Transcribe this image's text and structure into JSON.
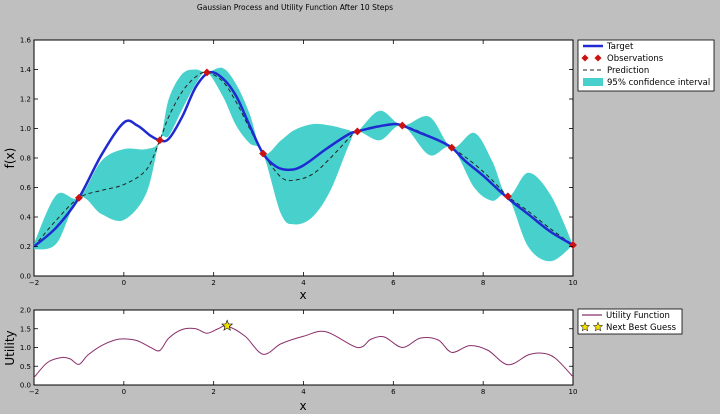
{
  "figure_title": "Gaussian Process and Utility Function After 10 Steps",
  "chart_data": [
    {
      "type": "line",
      "xlabel": "x",
      "ylabel": "f(x)",
      "xlim": [
        -2,
        10
      ],
      "ylim": [
        0,
        1.6
      ],
      "xticks": [
        "−2",
        "0",
        "2",
        "4",
        "6",
        "8",
        "10"
      ],
      "yticks": [
        "0.0",
        "0.2",
        "0.4",
        "0.6",
        "0.8",
        "1.0",
        "1.2",
        "1.4",
        "1.6"
      ],
      "grid": false,
      "legend_position": "right-outside-top",
      "legend": {
        "target": "Target",
        "observations": "Observations",
        "prediction": "Prediction",
        "ci": "95% confidence interval"
      },
      "colors": {
        "target": "#1f2ad1",
        "observations": "#cc1111",
        "prediction": "#222222",
        "ci": "#48d1cc"
      },
      "target": {
        "x": [
          -2,
          -1.5,
          -1,
          -0.5,
          0,
          0.3,
          0.6,
          0.8,
          1,
          1.3,
          1.6,
          1.9,
          2.2,
          2.5,
          2.8,
          3.1,
          3.4,
          3.7,
          4,
          4.5,
          5,
          5.2,
          5.6,
          6,
          6.2,
          6.6,
          7,
          7.3,
          7.6,
          8,
          8.5,
          9,
          9.5,
          10
        ],
        "y": [
          0.2,
          0.33,
          0.53,
          0.82,
          1.04,
          1.02,
          0.95,
          0.92,
          0.93,
          1.08,
          1.28,
          1.38,
          1.34,
          1.22,
          1.02,
          0.83,
          0.74,
          0.72,
          0.75,
          0.86,
          0.96,
          0.98,
          1.01,
          1.03,
          1.02,
          0.97,
          0.92,
          0.87,
          0.78,
          0.68,
          0.54,
          0.42,
          0.3,
          0.21
        ]
      },
      "observations": {
        "x": [
          -1,
          0.8,
          1.85,
          3.1,
          5.2,
          6.2,
          7.3,
          8.55,
          10
        ],
        "y": [
          0.53,
          0.92,
          1.38,
          0.83,
          0.98,
          1.02,
          0.87,
          0.54,
          0.21
        ]
      },
      "prediction": {
        "x": [
          -2,
          -1.5,
          -1,
          -0.5,
          0,
          0.5,
          0.8,
          1,
          1.3,
          1.6,
          1.85,
          2.2,
          2.5,
          2.8,
          3.1,
          3.5,
          3.8,
          4.2,
          4.6,
          5,
          5.2,
          5.7,
          6.2,
          6.8,
          7.3,
          7.8,
          8.2,
          8.55,
          9,
          9.5,
          10
        ],
        "y": [
          0.2,
          0.38,
          0.53,
          0.58,
          0.62,
          0.72,
          0.92,
          1.08,
          1.25,
          1.35,
          1.38,
          1.32,
          1.18,
          1.0,
          0.83,
          0.67,
          0.65,
          0.69,
          0.8,
          0.93,
          0.98,
          1.02,
          1.02,
          0.95,
          0.87,
          0.76,
          0.65,
          0.54,
          0.44,
          0.32,
          0.21
        ]
      },
      "ci": {
        "x": [
          -2,
          -1.5,
          -1,
          -0.5,
          0,
          0.5,
          0.8,
          1,
          1.3,
          1.6,
          1.85,
          2.2,
          2.5,
          2.8,
          3.1,
          3.5,
          3.8,
          4.2,
          4.6,
          5,
          5.2,
          5.7,
          6.2,
          6.8,
          7.3,
          7.8,
          8.2,
          8.55,
          9,
          9.5,
          10
        ],
        "upper": [
          0.22,
          0.55,
          0.53,
          0.78,
          0.86,
          0.86,
          0.92,
          1.2,
          1.37,
          1.4,
          1.38,
          1.41,
          1.3,
          1.1,
          0.83,
          0.92,
          0.99,
          1.03,
          1.02,
          0.99,
          0.98,
          1.12,
          1.02,
          1.08,
          0.87,
          0.97,
          0.78,
          0.54,
          0.7,
          0.55,
          0.21
        ],
        "lower": [
          0.18,
          0.22,
          0.53,
          0.42,
          0.38,
          0.56,
          0.92,
          0.95,
          1.13,
          1.3,
          1.38,
          1.22,
          1.02,
          0.9,
          0.83,
          0.42,
          0.35,
          0.4,
          0.58,
          0.88,
          0.98,
          0.92,
          1.02,
          0.82,
          0.87,
          0.6,
          0.51,
          0.54,
          0.2,
          0.1,
          0.21
        ]
      }
    },
    {
      "type": "line",
      "xlabel": "x",
      "ylabel": "Utility",
      "xlim": [
        -2,
        10
      ],
      "ylim": [
        0,
        2.0
      ],
      "xticks": [
        "−2",
        "0",
        "2",
        "4",
        "6",
        "8",
        "10"
      ],
      "yticks": [
        "0.0",
        "0.5",
        "1.0",
        "1.5",
        "2.0"
      ],
      "grid": false,
      "legend_position": "right-outside-top",
      "legend": {
        "utility": "Utility Function",
        "next_guess": "Next Best Guess"
      },
      "colors": {
        "utility": "#8b2f6b",
        "next_guess": "#f5e000"
      },
      "utility": {
        "x": [
          -2,
          -1.7,
          -1.4,
          -1.2,
          -1,
          -0.8,
          -0.5,
          -0.2,
          0,
          0.3,
          0.6,
          0.8,
          1,
          1.3,
          1.6,
          1.85,
          2.1,
          2.3,
          2.7,
          3.1,
          3.5,
          4,
          4.5,
          5.2,
          5.5,
          5.8,
          6.2,
          6.6,
          7,
          7.3,
          7.7,
          8.1,
          8.55,
          9,
          9.3,
          9.6,
          10
        ],
        "y": [
          0.2,
          0.6,
          0.73,
          0.7,
          0.55,
          0.8,
          1.05,
          1.2,
          1.23,
          1.18,
          1.0,
          0.92,
          1.25,
          1.48,
          1.5,
          1.38,
          1.5,
          1.57,
          1.3,
          0.82,
          1.1,
          1.3,
          1.42,
          1.0,
          1.22,
          1.28,
          1.0,
          1.25,
          1.2,
          0.87,
          1.05,
          0.93,
          0.54,
          0.8,
          0.85,
          0.72,
          0.22
        ]
      },
      "next_guess": {
        "x": 2.3,
        "y": 1.58
      }
    }
  ]
}
